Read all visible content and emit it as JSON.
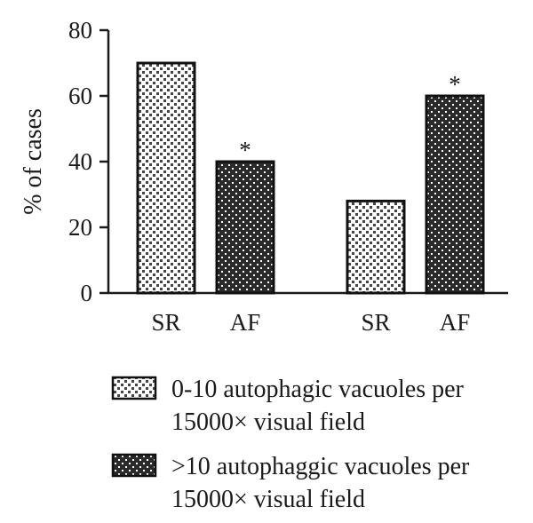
{
  "chart_data": {
    "type": "bar",
    "ylabel": "% of cases",
    "ylim": [
      0,
      80
    ],
    "yticks": [
      0,
      20,
      40,
      60,
      80
    ],
    "groups": [
      {
        "name": "",
        "bars": [
          {
            "category": "SR",
            "series": 0,
            "value": 70,
            "annotation": ""
          },
          {
            "category": "AF",
            "series": 1,
            "value": 40,
            "annotation": "*"
          }
        ]
      },
      {
        "name": "",
        "bars": [
          {
            "category": "SR",
            "series": 0,
            "value": 28,
            "annotation": ""
          },
          {
            "category": "AF",
            "series": 1,
            "value": 60,
            "annotation": "*"
          }
        ]
      }
    ],
    "series": [
      {
        "name": "0-10 autophagic vacuoles per 15000× visual field",
        "lines": [
          "0-10 autophagic vacuoles per",
          "15000× visual field"
        ],
        "pattern": "light-dots"
      },
      {
        "name": ">10 autophaggic vacuoles per 15000× visual field",
        "lines": [
          ">10 autophaggic vacuoles per",
          "15000× visual field"
        ],
        "pattern": "dark-checker"
      }
    ],
    "legend_position": "bottom"
  }
}
